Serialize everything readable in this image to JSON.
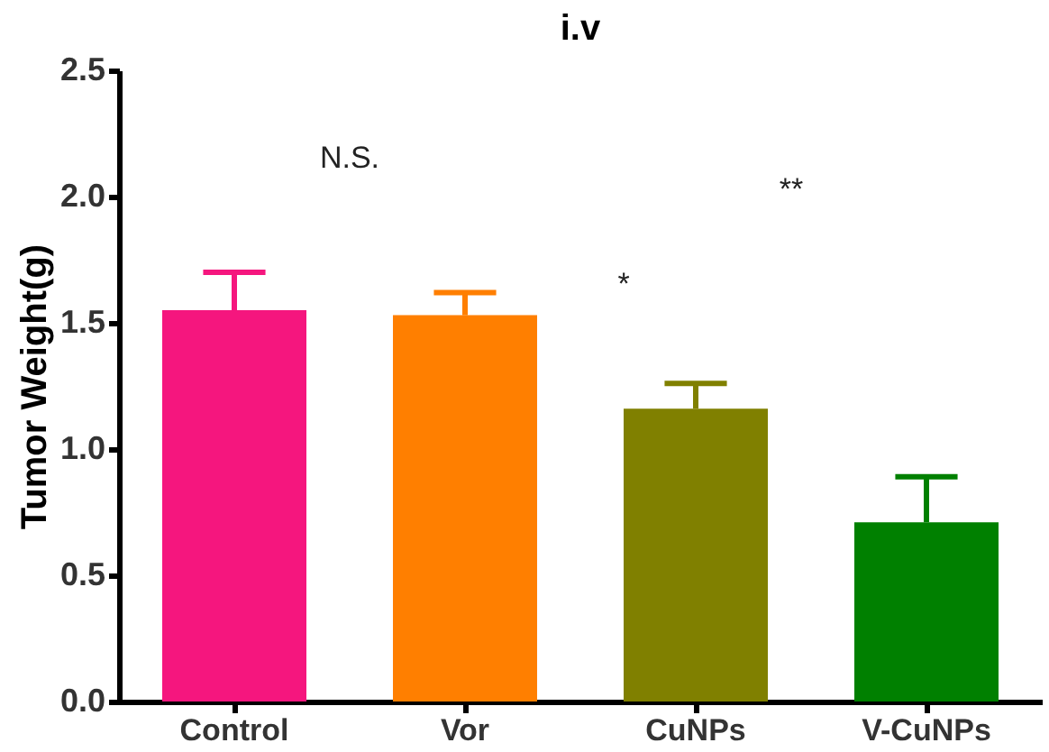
{
  "chart_data": {
    "type": "bar",
    "title": "i.v",
    "ylabel": "Tumor Weight(g)",
    "categories": [
      "Control",
      "Vor",
      "CuNPs",
      "V-CuNPs"
    ],
    "values": [
      1.55,
      1.53,
      1.16,
      0.71
    ],
    "colors": [
      "#f5167e",
      "#ff7f00",
      "#808000",
      "#008000"
    ],
    "errors": [
      [
        1.55,
        1.7
      ],
      [
        1.53,
        1.62
      ],
      [
        1.16,
        1.26
      ],
      [
        0.71,
        0.89
      ]
    ],
    "ylim": [
      0,
      2.5
    ],
    "yticks": [
      {
        "value": 0,
        "label": "0.0"
      },
      {
        "value": 0.5,
        "label": "0.5"
      },
      {
        "value": 1,
        "label": "1.0"
      },
      {
        "value": 1.5,
        "label": "1.5"
      },
      {
        "value": 2,
        "label": "2.0"
      },
      {
        "value": 2.5,
        "label": "2.5"
      }
    ],
    "annotations": [
      "N.S.",
      "*",
      "**"
    ],
    "grid": false
  }
}
